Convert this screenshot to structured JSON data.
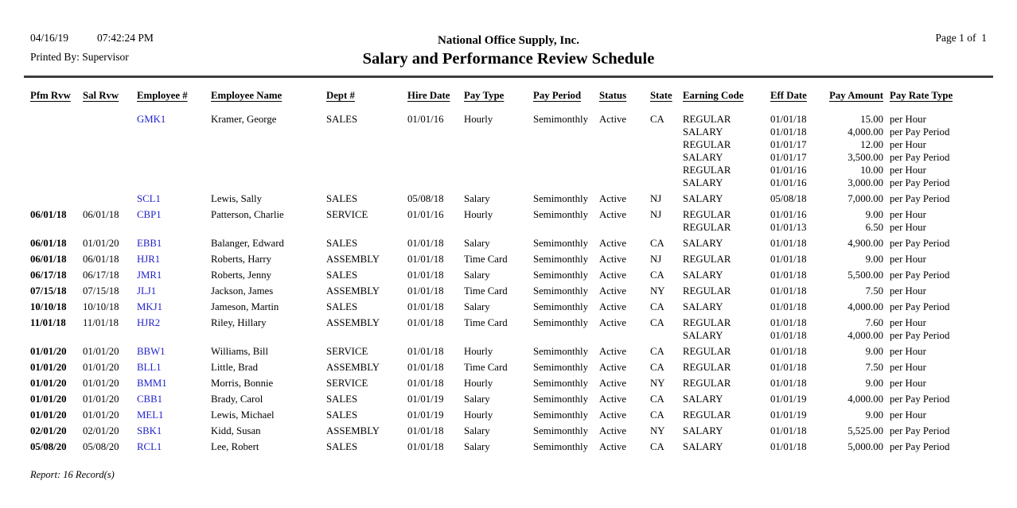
{
  "report": {
    "date": "04/16/19",
    "time": "07:42:24 PM",
    "printed_by_label": "Printed By:",
    "printed_by_value": "Supervisor",
    "company": "National Office Supply, Inc.",
    "title": "Salary and Performance Review Schedule",
    "page": "Page 1 of  1"
  },
  "colors": {
    "link_blue": "#2222cc",
    "text": "#000000",
    "rule": "#3d3d3d"
  },
  "table": {
    "columns": [
      "Pfm Rvw",
      "Sal Rvw",
      "Employee #",
      "Employee Name",
      "Dept #",
      "Hire Date",
      "Pay Type",
      "Pay Period",
      "Status",
      "State",
      "Earning Code",
      "Eff Date",
      "Pay Amount",
      "Pay Rate Type"
    ],
    "records": [
      {
        "pfm_rvw": "",
        "sal_rvw": "",
        "employee_id": "GMK1",
        "employee_name": "Kramer, George",
        "dept": "SALES",
        "hire_date": "01/01/16",
        "pay_type": "Hourly",
        "pay_period": "Semimonthly",
        "status": "Active",
        "state": "CA",
        "earnings": [
          {
            "code": "REGULAR",
            "eff_date": "01/01/18",
            "amount": "15.00",
            "rate_type": "per Hour"
          },
          {
            "code": "SALARY",
            "eff_date": "01/01/18",
            "amount": "4,000.00",
            "rate_type": "per Pay Period"
          },
          {
            "code": "REGULAR",
            "eff_date": "01/01/17",
            "amount": "12.00",
            "rate_type": "per Hour"
          },
          {
            "code": "SALARY",
            "eff_date": "01/01/17",
            "amount": "3,500.00",
            "rate_type": "per Pay Period"
          },
          {
            "code": "REGULAR",
            "eff_date": "01/01/16",
            "amount": "10.00",
            "rate_type": "per Hour"
          },
          {
            "code": "SALARY",
            "eff_date": "01/01/16",
            "amount": "3,000.00",
            "rate_type": "per Pay Period"
          }
        ]
      },
      {
        "pfm_rvw": "",
        "sal_rvw": "",
        "employee_id": "SCL1",
        "employee_name": "Lewis, Sally",
        "dept": "SALES",
        "hire_date": "05/08/18",
        "pay_type": "Salary",
        "pay_period": "Semimonthly",
        "status": "Active",
        "state": "NJ",
        "earnings": [
          {
            "code": "SALARY",
            "eff_date": "05/08/18",
            "amount": "7,000.00",
            "rate_type": "per Pay Period"
          }
        ]
      },
      {
        "pfm_rvw": "06/01/18",
        "sal_rvw": "06/01/18",
        "employee_id": "CBP1",
        "employee_name": "Patterson, Charlie",
        "dept": "SERVICE",
        "hire_date": "01/01/16",
        "pay_type": "Hourly",
        "pay_period": "Semimonthly",
        "status": "Active",
        "state": "NJ",
        "earnings": [
          {
            "code": "REGULAR",
            "eff_date": "01/01/16",
            "amount": "9.00",
            "rate_type": "per Hour"
          },
          {
            "code": "REGULAR",
            "eff_date": "01/01/13",
            "amount": "6.50",
            "rate_type": "per Hour"
          }
        ]
      },
      {
        "pfm_rvw": "06/01/18",
        "sal_rvw": "01/01/20",
        "employee_id": "EBB1",
        "employee_name": "Balanger, Edward",
        "dept": "SALES",
        "hire_date": "01/01/18",
        "pay_type": "Salary",
        "pay_period": "Semimonthly",
        "status": "Active",
        "state": "CA",
        "earnings": [
          {
            "code": "SALARY",
            "eff_date": "01/01/18",
            "amount": "4,900.00",
            "rate_type": "per Pay Period"
          }
        ]
      },
      {
        "pfm_rvw": "06/01/18",
        "sal_rvw": "06/01/18",
        "employee_id": "HJR1",
        "employee_name": "Roberts, Harry",
        "dept": "ASSEMBLY",
        "hire_date": "01/01/18",
        "pay_type": "Time Card",
        "pay_period": "Semimonthly",
        "status": "Active",
        "state": "NJ",
        "earnings": [
          {
            "code": "REGULAR",
            "eff_date": "01/01/18",
            "amount": "9.00",
            "rate_type": "per Hour"
          }
        ]
      },
      {
        "pfm_rvw": "06/17/18",
        "sal_rvw": "06/17/18",
        "employee_id": "JMR1",
        "employee_name": "Roberts, Jenny",
        "dept": "SALES",
        "hire_date": "01/01/18",
        "pay_type": "Salary",
        "pay_period": "Semimonthly",
        "status": "Active",
        "state": "CA",
        "earnings": [
          {
            "code": "SALARY",
            "eff_date": "01/01/18",
            "amount": "5,500.00",
            "rate_type": "per Pay Period"
          }
        ]
      },
      {
        "pfm_rvw": "07/15/18",
        "sal_rvw": "07/15/18",
        "employee_id": "JLJ1",
        "employee_name": "Jackson, James",
        "dept": "ASSEMBLY",
        "hire_date": "01/01/18",
        "pay_type": "Time Card",
        "pay_period": "Semimonthly",
        "status": "Active",
        "state": "NY",
        "earnings": [
          {
            "code": "REGULAR",
            "eff_date": "01/01/18",
            "amount": "7.50",
            "rate_type": "per Hour"
          }
        ]
      },
      {
        "pfm_rvw": "10/10/18",
        "sal_rvw": "10/10/18",
        "employee_id": "MKJ1",
        "employee_name": "Jameson, Martin",
        "dept": "SALES",
        "hire_date": "01/01/18",
        "pay_type": "Salary",
        "pay_period": "Semimonthly",
        "status": "Active",
        "state": "CA",
        "earnings": [
          {
            "code": "SALARY",
            "eff_date": "01/01/18",
            "amount": "4,000.00",
            "rate_type": "per Pay Period"
          }
        ]
      },
      {
        "pfm_rvw": "11/01/18",
        "sal_rvw": "11/01/18",
        "employee_id": "HJR2",
        "employee_name": "Riley, Hillary",
        "dept": "ASSEMBLY",
        "hire_date": "01/01/18",
        "pay_type": "Time Card",
        "pay_period": "Semimonthly",
        "status": "Active",
        "state": "CA",
        "earnings": [
          {
            "code": "REGULAR",
            "eff_date": "01/01/18",
            "amount": "7.60",
            "rate_type": "per Hour"
          },
          {
            "code": "SALARY",
            "eff_date": "01/01/18",
            "amount": "4,000.00",
            "rate_type": "per Pay Period"
          }
        ]
      },
      {
        "pfm_rvw": "01/01/20",
        "sal_rvw": "01/01/20",
        "employee_id": "BBW1",
        "employee_name": "Williams, Bill",
        "dept": "SERVICE",
        "hire_date": "01/01/18",
        "pay_type": "Hourly",
        "pay_period": "Semimonthly",
        "status": "Active",
        "state": "CA",
        "earnings": [
          {
            "code": "REGULAR",
            "eff_date": "01/01/18",
            "amount": "9.00",
            "rate_type": "per Hour"
          }
        ]
      },
      {
        "pfm_rvw": "01/01/20",
        "sal_rvw": "01/01/20",
        "employee_id": "BLL1",
        "employee_name": "Little, Brad",
        "dept": "ASSEMBLY",
        "hire_date": "01/01/18",
        "pay_type": "Time Card",
        "pay_period": "Semimonthly",
        "status": "Active",
        "state": "CA",
        "earnings": [
          {
            "code": "REGULAR",
            "eff_date": "01/01/18",
            "amount": "7.50",
            "rate_type": "per Hour"
          }
        ]
      },
      {
        "pfm_rvw": "01/01/20",
        "sal_rvw": "01/01/20",
        "employee_id": "BMM1",
        "employee_name": "Morris, Bonnie",
        "dept": "SERVICE",
        "hire_date": "01/01/18",
        "pay_type": "Hourly",
        "pay_period": "Semimonthly",
        "status": "Active",
        "state": "NY",
        "earnings": [
          {
            "code": "REGULAR",
            "eff_date": "01/01/18",
            "amount": "9.00",
            "rate_type": "per Hour"
          }
        ]
      },
      {
        "pfm_rvw": "01/01/20",
        "sal_rvw": "01/01/20",
        "employee_id": "CBB1",
        "employee_name": "Brady, Carol",
        "dept": "SALES",
        "hire_date": "01/01/19",
        "pay_type": "Salary",
        "pay_period": "Semimonthly",
        "status": "Active",
        "state": "CA",
        "earnings": [
          {
            "code": "SALARY",
            "eff_date": "01/01/19",
            "amount": "4,000.00",
            "rate_type": "per Pay Period"
          }
        ]
      },
      {
        "pfm_rvw": "01/01/20",
        "sal_rvw": "01/01/20",
        "employee_id": "MEL1",
        "employee_name": "Lewis, Michael",
        "dept": "SALES",
        "hire_date": "01/01/19",
        "pay_type": "Hourly",
        "pay_period": "Semimonthly",
        "status": "Active",
        "state": "CA",
        "earnings": [
          {
            "code": "REGULAR",
            "eff_date": "01/01/19",
            "amount": "9.00",
            "rate_type": "per Hour"
          }
        ]
      },
      {
        "pfm_rvw": "02/01/20",
        "sal_rvw": "02/01/20",
        "employee_id": "SBK1",
        "employee_name": "Kidd, Susan",
        "dept": "ASSEMBLY",
        "hire_date": "01/01/18",
        "pay_type": "Salary",
        "pay_period": "Semimonthly",
        "status": "Active",
        "state": "NY",
        "earnings": [
          {
            "code": "SALARY",
            "eff_date": "01/01/18",
            "amount": "5,525.00",
            "rate_type": "per Pay Period"
          }
        ]
      },
      {
        "pfm_rvw": "05/08/20",
        "sal_rvw": "05/08/20",
        "employee_id": "RCL1",
        "employee_name": "Lee, Robert",
        "dept": "SALES",
        "hire_date": "01/01/18",
        "pay_type": "Salary",
        "pay_period": "Semimonthly",
        "status": "Active",
        "state": "CA",
        "earnings": [
          {
            "code": "SALARY",
            "eff_date": "01/01/18",
            "amount": "5,000.00",
            "rate_type": "per Pay Period"
          }
        ]
      }
    ]
  },
  "footer": {
    "summary": "Report: 16 Record(s)"
  }
}
